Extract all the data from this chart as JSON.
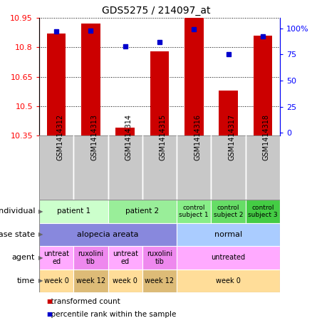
{
  "title": "GDS5275 / 214097_at",
  "samples": [
    "GSM1414312",
    "GSM1414313",
    "GSM1414314",
    "GSM1414315",
    "GSM1414316",
    "GSM1414317",
    "GSM1414318"
  ],
  "transformed_count": [
    10.87,
    10.92,
    10.39,
    10.78,
    10.95,
    10.58,
    10.86
  ],
  "percentile_rank": [
    97,
    98,
    83,
    87,
    99,
    75,
    92
  ],
  "ylim_left": [
    10.35,
    10.95
  ],
  "yticks_left": [
    10.35,
    10.5,
    10.65,
    10.8,
    10.95
  ],
  "yticks_right": [
    0,
    25,
    50,
    75,
    100
  ],
  "bar_color": "#cc0000",
  "dot_color": "#0000cc",
  "annotation_rows": [
    {
      "label": "individual",
      "groups": [
        {
          "span": [
            0,
            1
          ],
          "text": "patient 1",
          "color": "#ccffcc",
          "fontsize": 7.5
        },
        {
          "span": [
            2,
            3
          ],
          "text": "patient 2",
          "color": "#99ee99",
          "fontsize": 7.5
        },
        {
          "span": [
            4,
            4
          ],
          "text": "control\nsubject 1",
          "color": "#88ee88",
          "fontsize": 6.5
        },
        {
          "span": [
            5,
            5
          ],
          "text": "control\nsubject 2",
          "color": "#66dd66",
          "fontsize": 6.5
        },
        {
          "span": [
            6,
            6
          ],
          "text": "control\nsubject 3",
          "color": "#44cc44",
          "fontsize": 6.5
        }
      ]
    },
    {
      "label": "disease state",
      "groups": [
        {
          "span": [
            0,
            3
          ],
          "text": "alopecia areata",
          "color": "#8888dd",
          "fontsize": 8
        },
        {
          "span": [
            4,
            6
          ],
          "text": "normal",
          "color": "#aaccff",
          "fontsize": 8
        }
      ]
    },
    {
      "label": "agent",
      "groups": [
        {
          "span": [
            0,
            0
          ],
          "text": "untreat\ned",
          "color": "#ffaaff",
          "fontsize": 7
        },
        {
          "span": [
            1,
            1
          ],
          "text": "ruxolini\ntib",
          "color": "#ee88ee",
          "fontsize": 7
        },
        {
          "span": [
            2,
            2
          ],
          "text": "untreat\ned",
          "color": "#ffaaff",
          "fontsize": 7
        },
        {
          "span": [
            3,
            3
          ],
          "text": "ruxolini\ntib",
          "color": "#ee88ee",
          "fontsize": 7
        },
        {
          "span": [
            4,
            6
          ],
          "text": "untreated",
          "color": "#ffaaff",
          "fontsize": 7
        }
      ]
    },
    {
      "label": "time",
      "groups": [
        {
          "span": [
            0,
            0
          ],
          "text": "week 0",
          "color": "#ffdd99",
          "fontsize": 7
        },
        {
          "span": [
            1,
            1
          ],
          "text": "week 12",
          "color": "#ddbb77",
          "fontsize": 7
        },
        {
          "span": [
            2,
            2
          ],
          "text": "week 0",
          "color": "#ffdd99",
          "fontsize": 7
        },
        {
          "span": [
            3,
            3
          ],
          "text": "week 12",
          "color": "#ddbb77",
          "fontsize": 7
        },
        {
          "span": [
            4,
            6
          ],
          "text": "week 0",
          "color": "#ffdd99",
          "fontsize": 7
        }
      ]
    }
  ],
  "legend_items": [
    {
      "label": "transformed count",
      "color": "#cc0000"
    },
    {
      "label": "percentile rank within the sample",
      "color": "#0000cc"
    }
  ],
  "fig_width": 4.38,
  "fig_height": 4.53,
  "dpi": 100
}
